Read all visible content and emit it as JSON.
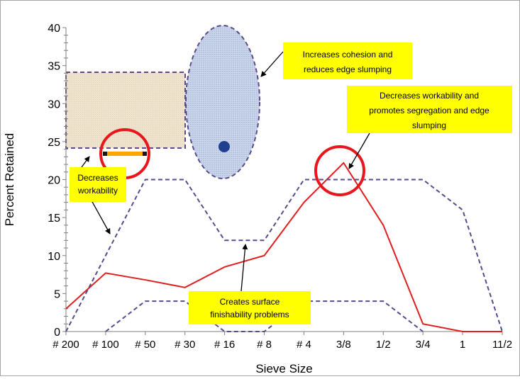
{
  "chart_data": {
    "type": "line",
    "xlabel": "Sieve Size",
    "ylabel": "Percent Retained",
    "ylim": [
      0,
      40
    ],
    "yticks": [
      0,
      5,
      10,
      15,
      20,
      25,
      30,
      35,
      40
    ],
    "categories": [
      "# 200",
      "# 100",
      "# 50",
      "# 30",
      "# 16",
      "# 8",
      "# 4",
      "3/8",
      "1/2",
      "3/4",
      "1",
      "11/2"
    ],
    "grid": false,
    "series": [
      {
        "values": [
          3,
          7.7,
          6.8,
          5.8,
          8.5,
          10,
          17,
          22.2,
          14,
          1,
          0,
          0
        ],
        "color": "#e02020",
        "style": "solid"
      },
      {
        "values": [
          0,
          10,
          20,
          20,
          12,
          12,
          20,
          20,
          20,
          20,
          16,
          0
        ],
        "color": "#5a4a8a",
        "style": "dashed"
      },
      {
        "values": [
          null,
          0,
          4,
          4,
          0,
          0,
          4,
          4,
          4,
          0,
          null,
          null
        ],
        "color": "#5a4a8a",
        "style": "dashed"
      }
    ],
    "annotations": [
      "Increases cohesion and reduces edge slumping",
      "Decreases workability and promotes segregation and edge slumping",
      "Decreases workability",
      "Creates surface finishability problems"
    ],
    "colors": {
      "highlight_circle": "#e8161d",
      "callout_fill": "#ffff00",
      "shaded_box": "#efe3cd",
      "ellipse_fill": "#c7d3ea",
      "marker_dot": "#1f3f8f",
      "orange_bar": "#ffa500"
    }
  }
}
